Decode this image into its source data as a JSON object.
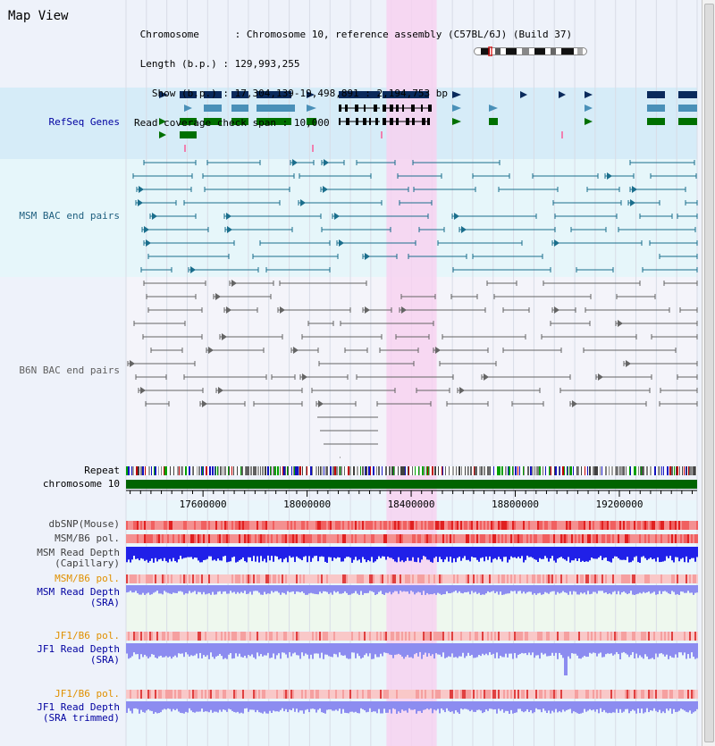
{
  "title": "Map View",
  "info": {
    "chromosome_label": "Chromosome",
    "chromosome_value": "Chromosome 10, reference assembly (C57BL/6J) (Build 37)",
    "length_label": "Length (b.p.)",
    "length_value": "129,993,255",
    "show_label": "Show (b.p.)",
    "show_value": "17,304,139-19,498,891 : 2,194,753 bp",
    "coverage_label": "Read coverage check span",
    "coverage_value": "10,000"
  },
  "view": {
    "start": 17304139,
    "end": 19498891,
    "highlight_start": 18305000,
    "highlight_end": 18498000
  },
  "ticks": [
    17600000,
    18000000,
    18400000,
    18800000,
    19200000
  ],
  "tracks": {
    "refseq": "RefSeq Genes",
    "msm_bac": "MSM BAC end pairs",
    "b6n_bac": "B6N BAC end pairs",
    "repeat": "Repeat",
    "chromosome": "chromosome 10",
    "dbsnp": "dbSNP(Mouse)",
    "msm_b6_pol": "MSM/B6 pol.",
    "msm_depth_cap_1": "MSM Read Depth",
    "msm_depth_cap_2": "(Capillary)",
    "msm_b6_pol_sra": "MSM/B6 pol.",
    "msm_depth_sra_1": "MSM Read Depth",
    "msm_depth_sra_2": "(SRA)",
    "jf1_b6_pol": "JF1/B6 pol.",
    "jf1_depth_1": "JF1 Read Depth",
    "jf1_depth_2": "(SRA)",
    "jf1_b6_pol_trim": "JF1/B6 pol.",
    "jf1_depth_trim_1": "JF1 Read Depth",
    "jf1_depth_trim_2": "(SRA trimmed)"
  },
  "colors": {
    "refseq_bg": "#d6ecf8",
    "msm_bg": "#e6f6fa",
    "b6n_bg": "#f4f4fa",
    "highlight": "#f7d2f0",
    "chromosome": "#006400",
    "refseq_dark": "#0a2a5c",
    "refseq_mid": "#4a90b8",
    "refseq_green": "#007000",
    "msm_line": "#1a6e8c",
    "b6n_line": "#646464",
    "depth_blue": "#2020e8",
    "depth_light": "#8c8cf0",
    "label_blue": "#0000a0",
    "label_teal": "#206080",
    "label_gray": "#606060",
    "label_orange": "#e09000"
  }
}
